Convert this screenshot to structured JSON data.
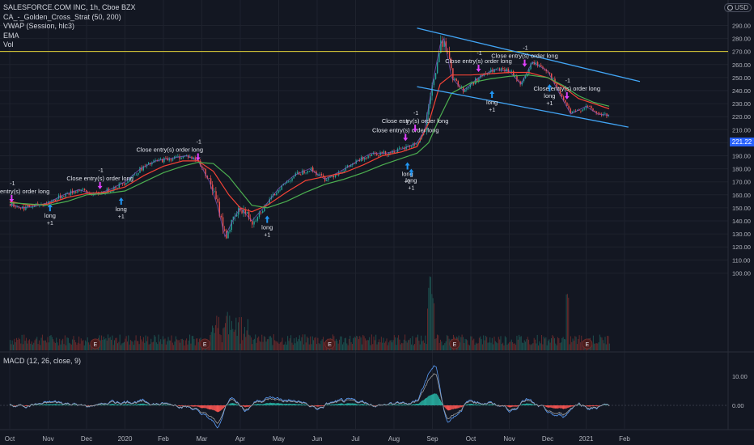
{
  "header": {
    "symbol_line": "SALESFORCE.COM INC, 1h, Cboe BZX",
    "indicators": [
      "CA_-_Golden_Cross_Strat (50, 200)",
      "VWAP (Session, hlc3)",
      "EMA",
      "Vol"
    ],
    "currency": "USD"
  },
  "macd": {
    "label": "MACD (12, 26, close, 9)",
    "ticks": [
      "10.00",
      "0.00"
    ]
  },
  "price_badge": "221.22",
  "colors": {
    "background": "#131722",
    "candle_up": "#26a69a",
    "candle_down": "#ef5350",
    "ema_fast": "#7e57c2",
    "ma_red": "#f44336",
    "ma_green": "#4caf50",
    "channel": "#42a5f5",
    "level_line": "#ffeb3b",
    "marker_short": "#e040fb",
    "marker_long": "#2196f3"
  },
  "chart_data": {
    "type": "line",
    "title": "SALESFORCE.COM INC, 1h, Cboe BZX",
    "x": [
      "Oct",
      "Nov",
      "Dec",
      "2020",
      "Feb",
      "Mar",
      "Apr",
      "May",
      "Jun",
      "Jul",
      "Aug",
      "Sep",
      "Oct",
      "Nov",
      "Dec",
      "2021",
      "Feb"
    ],
    "ylim": [
      100,
      295
    ],
    "yticks": [
      "290.00",
      "280.00",
      "270.00",
      "260.00",
      "250.00",
      "240.00",
      "230.00",
      "220.00",
      "210.00",
      "200.00",
      "190.00",
      "180.00",
      "170.00",
      "160.00",
      "150.00",
      "140.00",
      "130.00",
      "120.00",
      "110.00",
      "100.00"
    ],
    "series": [
      {
        "values": [
          [
            0,
            153
          ],
          [
            0.3,
            150
          ],
          [
            0.6,
            151
          ],
          [
            1.0,
            154
          ],
          [
            1.4,
            160
          ],
          [
            1.8,
            164
          ],
          [
            2.2,
            160
          ],
          [
            2.6,
            164
          ],
          [
            3.0,
            170
          ],
          [
            3.4,
            180
          ],
          [
            3.8,
            186
          ],
          [
            4.2,
            188
          ],
          [
            4.6,
            190
          ],
          [
            4.9,
            186
          ],
          [
            5.2,
            170
          ],
          [
            5.4,
            152
          ],
          [
            5.6,
            128
          ],
          [
            5.8,
            140
          ],
          [
            6.0,
            150
          ],
          [
            6.3,
            140
          ],
          [
            6.6,
            150
          ],
          [
            7.0,
            165
          ],
          [
            7.4,
            175
          ],
          [
            7.8,
            180
          ],
          [
            8.2,
            172
          ],
          [
            8.6,
            178
          ],
          [
            9.0,
            185
          ],
          [
            9.4,
            192
          ],
          [
            9.8,
            192
          ],
          [
            10.2,
            195
          ],
          [
            10.6,
            200
          ],
          [
            10.8,
            210
          ],
          [
            11.0,
            245
          ],
          [
            11.2,
            275
          ],
          [
            11.3,
            280
          ],
          [
            11.5,
            250
          ],
          [
            11.8,
            240
          ],
          [
            12.2,
            250
          ],
          [
            12.6,
            256
          ],
          [
            13.0,
            255
          ],
          [
            13.3,
            245
          ],
          [
            13.6,
            262
          ],
          [
            14.0,
            255
          ],
          [
            14.3,
            238
          ],
          [
            14.6,
            222
          ],
          [
            15.0,
            228
          ],
          [
            15.3,
            222
          ],
          [
            15.6,
            221
          ]
        ]
      },
      {
        "values": [
          [
            0,
            155
          ],
          [
            0.5,
            152
          ],
          [
            1.0,
            153
          ],
          [
            1.5,
            158
          ],
          [
            2.0,
            161
          ],
          [
            2.5,
            162
          ],
          [
            3.0,
            166
          ],
          [
            3.5,
            175
          ],
          [
            4.0,
            182
          ],
          [
            4.5,
            186
          ],
          [
            4.9,
            186
          ],
          [
            5.3,
            178
          ],
          [
            5.7,
            160
          ],
          [
            6.0,
            150
          ],
          [
            6.3,
            147
          ],
          [
            6.7,
            152
          ],
          [
            7.2,
            162
          ],
          [
            7.7,
            171
          ],
          [
            8.2,
            174
          ],
          [
            8.7,
            177
          ],
          [
            9.2,
            183
          ],
          [
            9.7,
            190
          ],
          [
            10.2,
            193
          ],
          [
            10.6,
            197
          ],
          [
            10.9,
            215
          ],
          [
            11.2,
            245
          ],
          [
            11.5,
            252
          ],
          [
            12.0,
            252
          ],
          [
            12.5,
            253
          ],
          [
            13.0,
            254
          ],
          [
            13.5,
            254
          ],
          [
            14.0,
            250
          ],
          [
            14.4,
            243
          ],
          [
            14.8,
            234
          ],
          [
            15.2,
            230
          ],
          [
            15.6,
            226
          ]
        ]
      },
      {
        "values": [
          [
            0,
            154
          ],
          [
            0.5,
            153
          ],
          [
            1.0,
            152
          ],
          [
            1.5,
            155
          ],
          [
            2.0,
            160
          ],
          [
            2.5,
            161
          ],
          [
            3.0,
            163
          ],
          [
            3.5,
            170
          ],
          [
            4.0,
            177
          ],
          [
            4.5,
            182
          ],
          [
            4.9,
            185
          ],
          [
            5.3,
            184
          ],
          [
            5.7,
            174
          ],
          [
            6.0,
            163
          ],
          [
            6.3,
            152
          ],
          [
            6.7,
            150
          ],
          [
            7.2,
            155
          ],
          [
            7.7,
            162
          ],
          [
            8.2,
            168
          ],
          [
            8.7,
            172
          ],
          [
            9.2,
            177
          ],
          [
            9.7,
            183
          ],
          [
            10.2,
            188
          ],
          [
            10.6,
            192
          ],
          [
            10.9,
            200
          ],
          [
            11.2,
            220
          ],
          [
            11.5,
            238
          ],
          [
            12.0,
            246
          ],
          [
            12.5,
            249
          ],
          [
            13.0,
            251
          ],
          [
            13.5,
            252
          ],
          [
            14.0,
            250
          ],
          [
            14.4,
            244
          ],
          [
            14.8,
            236
          ],
          [
            15.2,
            231
          ],
          [
            15.6,
            228
          ]
        ]
      }
    ],
    "annotations": [
      "Close entry(s) order long",
      "-1",
      "long",
      "+1"
    ],
    "channel_lines": [
      {
        "from": [
          10.6,
          288
        ],
        "to": [
          16.4,
          247
        ]
      },
      {
        "from": [
          10.6,
          243
        ],
        "to": [
          16.1,
          212
        ]
      }
    ],
    "horizontal_level": 270
  }
}
